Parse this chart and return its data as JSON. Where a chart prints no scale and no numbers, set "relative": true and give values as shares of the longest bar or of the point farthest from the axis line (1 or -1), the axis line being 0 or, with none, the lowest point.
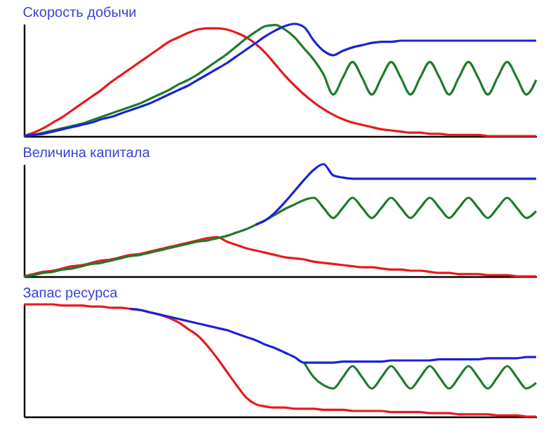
{
  "chart_data": [
    {
      "type": "line",
      "title": "Скорость добычи",
      "relative": true,
      "tick_labels": false,
      "categories": [
        null,
        null,
        null,
        null,
        null,
        null,
        null,
        null,
        null,
        null,
        null,
        null,
        null,
        null,
        null,
        null,
        null,
        null,
        null,
        null,
        null,
        null,
        null,
        null,
        null,
        null,
        null,
        null,
        null,
        null,
        null,
        null,
        null,
        null,
        null,
        null,
        null,
        null,
        null,
        null,
        null,
        null,
        null,
        null,
        null,
        null,
        null,
        null,
        null,
        null,
        null,
        null,
        null,
        null
      ],
      "series": [
        {
          "color": "#e8191c",
          "values": [
            0,
            0.03,
            0.07,
            0.12,
            0.17,
            0.23,
            0.29,
            0.35,
            0.41,
            0.48,
            0.54,
            0.6,
            0.66,
            0.72,
            0.78,
            0.84,
            0.88,
            0.92,
            0.95,
            0.96,
            0.96,
            0.95,
            0.92,
            0.88,
            0.82,
            0.74,
            0.64,
            0.54,
            0.45,
            0.37,
            0.3,
            0.24,
            0.19,
            0.15,
            0.12,
            0.1,
            0.08,
            0.06,
            0.05,
            0.04,
            0.03,
            0.03,
            0.02,
            0.02,
            0.01,
            0.01,
            0.01,
            0.01,
            0,
            0,
            0,
            0,
            0,
            0
          ]
        },
        {
          "color": "#1e7b2b",
          "values": [
            0,
            0.01,
            0.03,
            0.05,
            0.07,
            0.09,
            0.11,
            0.14,
            0.17,
            0.2,
            0.23,
            0.26,
            0.29,
            0.33,
            0.37,
            0.41,
            0.46,
            0.5,
            0.55,
            0.61,
            0.67,
            0.73,
            0.8,
            0.87,
            0.93,
            0.98,
            0.99,
            0.95,
            0.88,
            0.78,
            0.68,
            0.55,
            0.37,
            0.52,
            0.66,
            0.52,
            0.37,
            0.52,
            0.66,
            0.52,
            0.37,
            0.52,
            0.66,
            0.52,
            0.37,
            0.52,
            0.66,
            0.52,
            0.37,
            0.52,
            0.66,
            0.52,
            0.37,
            0.5
          ]
        },
        {
          "color": "#1b23d6",
          "values": [
            0,
            0.01,
            0.02,
            0.04,
            0.06,
            0.08,
            0.1,
            0.12,
            0.15,
            0.17,
            0.2,
            0.23,
            0.26,
            0.29,
            0.33,
            0.37,
            0.41,
            0.45,
            0.5,
            0.55,
            0.6,
            0.65,
            0.71,
            0.77,
            0.83,
            0.89,
            0.94,
            0.98,
            1,
            0.97,
            0.85,
            0.76,
            0.72,
            0.76,
            0.79,
            0.81,
            0.83,
            0.84,
            0.84,
            0.85,
            0.85,
            0.85,
            0.85,
            0.85,
            0.85,
            0.85,
            0.85,
            0.85,
            0.85,
            0.85,
            0.85,
            0.85,
            0.85,
            0.85
          ]
        }
      ]
    },
    {
      "type": "line",
      "title": "Величина капитала",
      "relative": true,
      "tick_labels": false,
      "categories": [
        null,
        null,
        null,
        null,
        null,
        null,
        null,
        null,
        null,
        null,
        null,
        null,
        null,
        null,
        null,
        null,
        null,
        null,
        null,
        null,
        null,
        null,
        null,
        null,
        null,
        null,
        null,
        null,
        null,
        null,
        null,
        null,
        null,
        null,
        null,
        null,
        null,
        null,
        null,
        null,
        null,
        null,
        null,
        null,
        null,
        null,
        null,
        null,
        null,
        null,
        null,
        null,
        null,
        null
      ],
      "series": [
        {
          "color": "#e8191c",
          "values": [
            0,
            0.02,
            0.04,
            0.05,
            0.07,
            0.09,
            0.1,
            0.12,
            0.14,
            0.15,
            0.17,
            0.19,
            0.2,
            0.22,
            0.24,
            0.26,
            0.28,
            0.3,
            0.32,
            0.34,
            0.35,
            0.31,
            0.28,
            0.25,
            0.23,
            0.21,
            0.19,
            0.17,
            0.16,
            0.15,
            0.13,
            0.12,
            0.11,
            0.1,
            0.09,
            0.08,
            0.08,
            0.07,
            0.06,
            0.06,
            0.05,
            0.05,
            0.04,
            0.03,
            0.03,
            0.02,
            0.02,
            0.02,
            0.01,
            0.01,
            0.01,
            0,
            0,
            0
          ]
        },
        {
          "color": "#1e7b2b",
          "values": [
            0,
            0.01,
            0.03,
            0.04,
            0.06,
            0.07,
            0.09,
            0.11,
            0.12,
            0.14,
            0.16,
            0.18,
            0.19,
            0.21,
            0.23,
            0.25,
            0.27,
            0.29,
            0.31,
            0.32,
            0.34,
            0.36,
            0.39,
            0.42,
            0.46,
            0.5,
            0.55,
            0.6,
            0.64,
            0.68,
            0.7,
            0.61,
            0.52,
            0.61,
            0.7,
            0.61,
            0.52,
            0.61,
            0.7,
            0.61,
            0.52,
            0.61,
            0.7,
            0.61,
            0.52,
            0.61,
            0.7,
            0.61,
            0.52,
            0.61,
            0.7,
            0.61,
            0.52,
            0.58
          ]
        },
        {
          "color": "#1b23d6",
          "values": [
            null,
            null,
            null,
            null,
            null,
            null,
            null,
            null,
            null,
            null,
            null,
            null,
            null,
            null,
            null,
            null,
            null,
            null,
            null,
            null,
            null,
            null,
            null,
            null,
            0.46,
            0.5,
            0.57,
            0.66,
            0.76,
            0.86,
            0.95,
            1,
            0.9,
            0.88,
            0.87,
            0.87,
            0.87,
            0.87,
            0.87,
            0.87,
            0.87,
            0.87,
            0.87,
            0.87,
            0.87,
            0.87,
            0.87,
            0.87,
            0.87,
            0.87,
            0.87,
            0.87,
            0.87,
            0.87
          ]
        }
      ]
    },
    {
      "type": "line",
      "title": "Запас ресурса",
      "relative": true,
      "tick_labels": false,
      "categories": [
        null,
        null,
        null,
        null,
        null,
        null,
        null,
        null,
        null,
        null,
        null,
        null,
        null,
        null,
        null,
        null,
        null,
        null,
        null,
        null,
        null,
        null,
        null,
        null,
        null,
        null,
        null,
        null,
        null,
        null,
        null,
        null,
        null,
        null,
        null,
        null,
        null,
        null,
        null,
        null,
        null,
        null,
        null,
        null,
        null,
        null,
        null,
        null,
        null,
        null,
        null,
        null,
        null,
        null
      ],
      "series": [
        {
          "color": "#e8191c",
          "values": [
            1,
            1,
            1,
            1,
            0.99,
            0.99,
            0.99,
            0.98,
            0.98,
            0.97,
            0.97,
            0.96,
            0.95,
            0.93,
            0.91,
            0.88,
            0.84,
            0.78,
            0.72,
            0.63,
            0.52,
            0.4,
            0.28,
            0.17,
            0.11,
            0.09,
            0.08,
            0.08,
            0.07,
            0.07,
            0.07,
            0.06,
            0.06,
            0.06,
            0.05,
            0.05,
            0.05,
            0.05,
            0.04,
            0.04,
            0.04,
            0.04,
            0.03,
            0.03,
            0.03,
            0.02,
            0.02,
            0.02,
            0.02,
            0.01,
            0.01,
            0.01,
            0,
            0
          ]
        },
        {
          "color": "#1e7b2b",
          "values": [
            null,
            null,
            null,
            null,
            null,
            null,
            null,
            null,
            null,
            null,
            null,
            null,
            null,
            null,
            null,
            null,
            null,
            null,
            null,
            null,
            null,
            null,
            null,
            null,
            null,
            null,
            null,
            null,
            null,
            0.48,
            0.35,
            0.28,
            0.25,
            0.35,
            0.45,
            0.35,
            0.25,
            0.35,
            0.45,
            0.35,
            0.25,
            0.35,
            0.45,
            0.35,
            0.25,
            0.35,
            0.45,
            0.35,
            0.25,
            0.35,
            0.45,
            0.35,
            0.25,
            0.3
          ]
        },
        {
          "color": "#1b23d6",
          "values": [
            null,
            null,
            null,
            null,
            null,
            null,
            null,
            null,
            null,
            null,
            null,
            0.96,
            0.95,
            0.93,
            0.91,
            0.89,
            0.87,
            0.85,
            0.83,
            0.81,
            0.79,
            0.77,
            0.74,
            0.71,
            0.68,
            0.64,
            0.61,
            0.57,
            0.53,
            0.48,
            0.48,
            0.48,
            0.48,
            0.49,
            0.49,
            0.49,
            0.49,
            0.49,
            0.5,
            0.5,
            0.5,
            0.5,
            0.5,
            0.51,
            0.51,
            0.51,
            0.51,
            0.51,
            0.52,
            0.52,
            0.52,
            0.52,
            0.53,
            0.53
          ]
        }
      ]
    }
  ]
}
